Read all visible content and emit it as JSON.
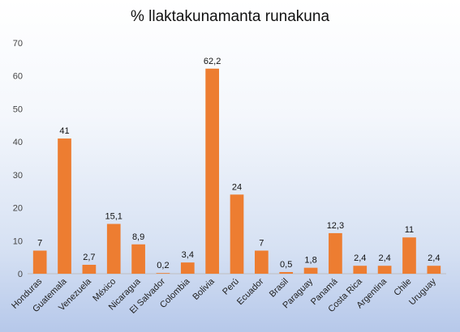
{
  "chart_data": {
    "type": "bar",
    "title": "% llaktakunamanta runakuna",
    "xlabel": "",
    "ylabel": "",
    "ylim": [
      0,
      70
    ],
    "yticks": [
      0,
      10,
      20,
      30,
      40,
      50,
      60,
      70
    ],
    "grid": false,
    "legend": "none",
    "bar_color": "#ed7d31",
    "categories": [
      "Honduras",
      "Guatemala",
      "Venezuela",
      "México",
      "Nicaragua",
      "El Salvador",
      "Colombia",
      "Bolivia",
      "Perú",
      "Ecuador",
      "Brasil",
      "Paraguay",
      "Panamá",
      "Costa Rica",
      "Argentina",
      "Chile",
      "Uruguay"
    ],
    "values": [
      7,
      41,
      2.7,
      15.1,
      8.9,
      0.2,
      3.4,
      62.2,
      24,
      7,
      0.5,
      1.8,
      12.3,
      2.4,
      2.4,
      11,
      2.4
    ],
    "data_labels": [
      "7",
      "41",
      "2,7",
      "15,1",
      "8,9",
      "0,2",
      "3,4",
      "62,2",
      "24",
      "7",
      "0,5",
      "1,8",
      "12,3",
      "2,4",
      "2,4",
      "11",
      "2,4"
    ]
  }
}
